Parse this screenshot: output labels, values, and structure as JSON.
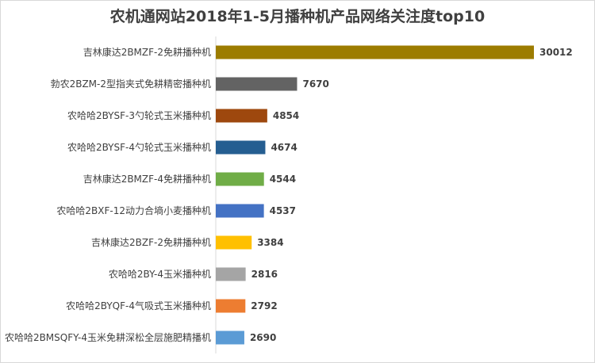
{
  "chart_data": {
    "type": "bar",
    "orientation": "horizontal",
    "title": "农机通网站2018年1-5月播种机产品网络关注度top10",
    "xlabel": "",
    "ylabel": "",
    "xlim": [
      0,
      30012
    ],
    "grid": false,
    "legend": "none",
    "categories": [
      "吉林康达2BMZF-2免耕播种机",
      "勃农2BZM-2型指夹式免耕精密播种机",
      "农哈哈2BYSF-3勺轮式玉米播种机",
      "农哈哈2BYSF-4勺轮式玉米播种机",
      "吉林康达2BMZF-4免耕播种机",
      "农哈哈2BXF-12动力合墒小麦播种机",
      "吉林康达2BZF-2免耕播种机",
      "农哈哈2BY-4玉米播种机",
      "农哈哈2BYQF-4气吸式玉米播种机",
      "农哈哈2BMSQFY-4玉米免耕深松全层施肥精播机"
    ],
    "values": [
      30012,
      7670,
      4854,
      4674,
      4544,
      4537,
      3384,
      2816,
      2792,
      2690
    ],
    "colors": [
      "#9c7c00",
      "#636363",
      "#9e480e",
      "#255e91",
      "#70ad47",
      "#4472c4",
      "#ffc000",
      "#a5a5a5",
      "#ed7d31",
      "#5b9bd5"
    ]
  }
}
